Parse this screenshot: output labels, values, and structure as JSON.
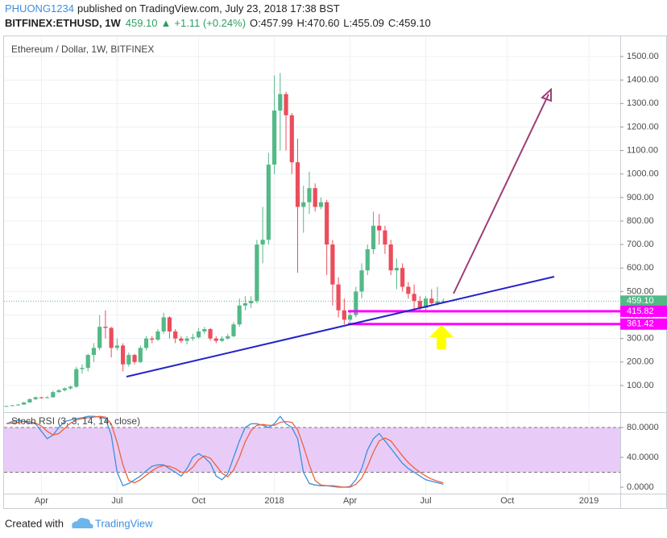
{
  "header": {
    "user": "PHUONG1234",
    "published": "published on TradingView.com, July 23, 2018 17:38 BST",
    "symbol": "BITFINEX:ETHUSD, 1W",
    "price": "459.10",
    "arrow": "▲",
    "change": "+1.11 (+0.24%)",
    "ohlc": [
      "O:457.99",
      "H:470.60",
      "L:455.09",
      "C:459.10"
    ]
  },
  "chart_data": {
    "type": "candlestick",
    "title": "Ethereum / Dollar, 1W, BITFINEX",
    "up_color": "#53b987",
    "down_color": "#eb4d5c",
    "grid": true,
    "categories": [
      null,
      null,
      null,
      null,
      null,
      null,
      "Apr",
      null,
      null,
      null,
      null,
      null,
      null,
      null,
      null,
      null,
      null,
      null,
      null,
      "Jul",
      null,
      null,
      null,
      null,
      null,
      null,
      null,
      null,
      null,
      null,
      null,
      null,
      null,
      "Oct",
      null,
      null,
      null,
      null,
      null,
      null,
      null,
      null,
      null,
      null,
      null,
      null,
      "2018",
      null,
      null,
      null,
      null,
      null,
      null,
      null,
      null,
      null,
      null,
      null,
      null,
      "Apr",
      null,
      null,
      null,
      null,
      null,
      null,
      null,
      null,
      null,
      null,
      null,
      null,
      "Jul",
      null,
      null,
      null,
      null,
      null,
      null,
      null,
      null,
      null,
      null,
      null,
      null,
      null,
      "Oct",
      null,
      null,
      null,
      null,
      null,
      null,
      null,
      null,
      null,
      null,
      null,
      null,
      null,
      "2019"
    ],
    "open": [
      11,
      13,
      16,
      19,
      28,
      42,
      50,
      48,
      50,
      72,
      80,
      88,
      95,
      170,
      175,
      230,
      260,
      350,
      345,
      260,
      270,
      190,
      230,
      200,
      260,
      300,
      295,
      330,
      390,
      330,
      300,
      290,
      300,
      305,
      330,
      340,
      300,
      290,
      300,
      310,
      360,
      440,
      450,
      460,
      700,
      720,
      1040,
      1270,
      1340,
      1250,
      1050,
      860,
      880,
      940,
      860,
      880,
      700,
      530,
      420,
      380,
      400,
      500,
      590,
      680,
      780,
      760,
      700,
      590,
      600,
      520,
      490,
      460,
      430,
      470,
      450,
      457.99,
      null,
      null,
      null,
      null,
      null,
      null,
      null,
      null,
      null,
      null,
      null,
      null,
      null,
      null,
      null,
      null,
      null,
      null,
      null,
      null,
      null,
      null,
      null,
      null,
      null
    ],
    "high": [
      14,
      17,
      21,
      30,
      45,
      53,
      52,
      54,
      78,
      85,
      92,
      100,
      180,
      190,
      235,
      280,
      400,
      420,
      350,
      300,
      280,
      240,
      235,
      270,
      310,
      310,
      340,
      410,
      395,
      340,
      310,
      310,
      320,
      345,
      350,
      345,
      310,
      310,
      320,
      370,
      470,
      480,
      480,
      720,
      860,
      1090,
      1420,
      1430,
      1350,
      1260,
      1150,
      950,
      1010,
      960,
      900,
      890,
      720,
      560,
      470,
      420,
      520,
      620,
      700,
      840,
      830,
      780,
      720,
      640,
      620,
      540,
      530,
      480,
      480,
      510,
      520,
      470.6,
      null,
      null,
      null,
      null,
      null,
      null,
      null,
      null,
      null,
      null,
      null,
      null,
      null,
      null,
      null,
      null,
      null,
      null,
      null,
      null,
      null,
      null,
      null,
      null,
      null
    ],
    "low": [
      10.5,
      12,
      15,
      18,
      27,
      38,
      44,
      45,
      48,
      68,
      75,
      82,
      90,
      150,
      160,
      200,
      250,
      300,
      220,
      250,
      160,
      180,
      190,
      195,
      250,
      280,
      290,
      320,
      300,
      280,
      280,
      275,
      290,
      300,
      320,
      290,
      280,
      285,
      295,
      305,
      350,
      420,
      430,
      450,
      620,
      700,
      1000,
      1100,
      1100,
      1000,
      580,
      750,
      830,
      840,
      850,
      570,
      440,
      390,
      360,
      370,
      390,
      470,
      570,
      660,
      700,
      660,
      570,
      510,
      500,
      470,
      420,
      420,
      420,
      440,
      440,
      455.09,
      null,
      null,
      null,
      null,
      null,
      null,
      null,
      null,
      null,
      null,
      null,
      null,
      null,
      null,
      null,
      null,
      null,
      null,
      null,
      null,
      null,
      null,
      null,
      null,
      null
    ],
    "close": [
      13,
      16,
      19,
      28,
      42,
      50,
      48,
      50,
      72,
      80,
      88,
      95,
      170,
      175,
      230,
      260,
      350,
      345,
      260,
      270,
      190,
      230,
      200,
      260,
      300,
      295,
      330,
      390,
      330,
      300,
      290,
      300,
      305,
      330,
      340,
      300,
      290,
      300,
      310,
      360,
      440,
      450,
      460,
      700,
      720,
      1040,
      1270,
      1340,
      1250,
      1050,
      860,
      880,
      940,
      860,
      880,
      700,
      530,
      420,
      380,
      400,
      500,
      590,
      680,
      780,
      760,
      700,
      590,
      600,
      520,
      490,
      460,
      430,
      470,
      450,
      458,
      459.1,
      null,
      null,
      null,
      null,
      null,
      null,
      null,
      null,
      null,
      null,
      null,
      null,
      null,
      null,
      null,
      null,
      null,
      null,
      null,
      null,
      null,
      null,
      null,
      null,
      null
    ],
    "ylim": [
      -10,
      1586
    ],
    "yticks": [
      {
        "value": 100,
        "label": "100.00"
      },
      {
        "value": 200,
        "label": "200.00"
      },
      {
        "value": 300,
        "label": "300.00"
      },
      {
        "value": 400,
        "label": "400.00"
      },
      {
        "value": 500,
        "label": "500.00"
      },
      {
        "value": 600,
        "label": "600.00"
      },
      {
        "value": 700,
        "label": "700.00"
      },
      {
        "value": 800,
        "label": "800.00"
      },
      {
        "value": 900,
        "label": "900.00"
      },
      {
        "value": 1000,
        "label": "1000.00"
      },
      {
        "value": 1100,
        "label": "1100.00"
      },
      {
        "value": 1200,
        "label": "1200.00"
      },
      {
        "value": 1300,
        "label": "1300.00"
      },
      {
        "value": 1400,
        "label": "1400.00"
      },
      {
        "value": 1500,
        "label": "1500.00"
      }
    ],
    "last_price": {
      "value": 459.1,
      "label": "459.10",
      "color": "#53b987"
    },
    "price_lines": [
      {
        "value": 415.82,
        "color": "#ff00ff"
      },
      {
        "value": 361.42,
        "color": "#ff00ff"
      }
    ],
    "indicator": {
      "title": "Stoch RSI (3, 3, 14, 14, close)",
      "ylim": [
        -8.6,
        99.5
      ],
      "yticks": [
        {
          "value": 0,
          "label": "0.0000"
        },
        {
          "value": 40,
          "label": "40.0000"
        },
        {
          "value": 80,
          "label": "80.0000"
        }
      ],
      "band": [
        20,
        80
      ],
      "band_color": "#e8ccf7",
      "series": [
        {
          "color": "#3c8fdd",
          "values": [
            85,
            88,
            90,
            88,
            86,
            85,
            75,
            65,
            70,
            80,
            88,
            90,
            92,
            93,
            95,
            95,
            94,
            92,
            70,
            20,
            2,
            5,
            10,
            15,
            22,
            28,
            30,
            30,
            25,
            20,
            15,
            25,
            40,
            45,
            40,
            32,
            15,
            10,
            18,
            40,
            62,
            80,
            85,
            85,
            83,
            80,
            85,
            95,
            85,
            80,
            65,
            20,
            5,
            3,
            2,
            2,
            1,
            0,
            0,
            1,
            10,
            25,
            50,
            65,
            72,
            62,
            52,
            42,
            32,
            25,
            20,
            15,
            10,
            8,
            6,
            4,
            null,
            null,
            null,
            null,
            null,
            null,
            null,
            null,
            null,
            null,
            null,
            null,
            null,
            null,
            null,
            null,
            null,
            null,
            null,
            null,
            null,
            null,
            null,
            null,
            null
          ]
        },
        {
          "color": "#f0603c",
          "values": [
            85,
            86,
            87,
            88,
            88,
            86,
            82,
            75,
            70,
            72,
            79,
            86,
            90,
            92,
            93,
            94,
            95,
            94,
            85,
            60,
            30,
            9,
            6,
            10,
            16,
            22,
            27,
            29,
            28,
            25,
            20,
            20,
            27,
            37,
            42,
            39,
            29,
            19,
            14,
            23,
            40,
            61,
            76,
            83,
            84,
            83,
            83,
            87,
            88,
            87,
            77,
            55,
            30,
            9,
            3,
            2,
            2,
            1,
            0,
            0,
            4,
            12,
            28,
            47,
            62,
            66,
            62,
            52,
            42,
            33,
            26,
            20,
            15,
            11,
            8,
            6,
            null,
            null,
            null,
            null,
            null,
            null,
            null,
            null,
            null,
            null,
            null,
            null,
            null,
            null,
            null,
            null,
            null,
            null,
            null,
            null,
            null,
            null,
            null,
            null,
            null
          ]
        }
      ]
    }
  },
  "footer": {
    "created": "Created with",
    "brand": "TradingView"
  }
}
